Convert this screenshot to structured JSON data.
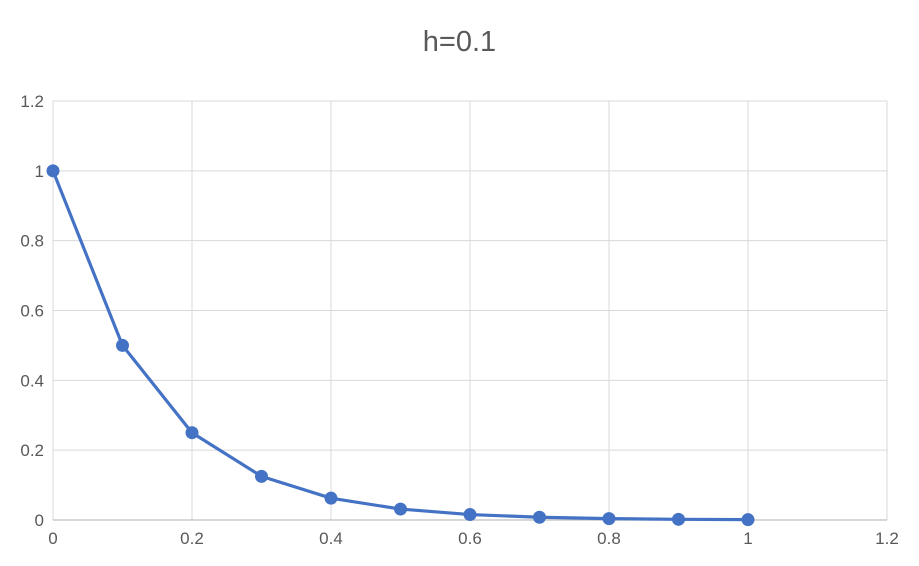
{
  "chart_data": {
    "type": "line",
    "title": "h=0.1",
    "xlabel": "",
    "ylabel": "",
    "xlim": [
      0,
      1.2
    ],
    "ylim": [
      0,
      1.2
    ],
    "xticks": [
      "0",
      "0.2",
      "0.4",
      "0.6",
      "0.8",
      "1",
      "1.2"
    ],
    "yticks": [
      "0",
      "0.2",
      "0.4",
      "0.6",
      "0.8",
      "1",
      "1.2"
    ],
    "grid": true,
    "series_color": "#4472C4",
    "series": [
      {
        "x": [
          0,
          0.1,
          0.2,
          0.3,
          0.4,
          0.5,
          0.6,
          0.7,
          0.8,
          0.9,
          1.0
        ],
        "values": [
          1.0,
          0.5,
          0.25,
          0.125,
          0.0625,
          0.03125,
          0.015625,
          0.0078125,
          0.00390625,
          0.001953125,
          0.0009765625
        ]
      }
    ]
  }
}
